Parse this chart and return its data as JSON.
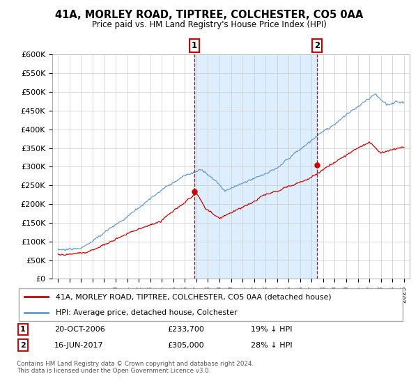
{
  "title": "41A, MORLEY ROAD, TIPTREE, COLCHESTER, CO5 0AA",
  "subtitle": "Price paid vs. HM Land Registry's House Price Index (HPI)",
  "ylabel_ticks": [
    "£0",
    "£50K",
    "£100K",
    "£150K",
    "£200K",
    "£250K",
    "£300K",
    "£350K",
    "£400K",
    "£450K",
    "£500K",
    "£550K",
    "£600K"
  ],
  "ytick_values": [
    0,
    50000,
    100000,
    150000,
    200000,
    250000,
    300000,
    350000,
    400000,
    450000,
    500000,
    550000,
    600000
  ],
  "hpi_color": "#6699cc",
  "price_color": "#cc0000",
  "shade_color": "#ddeeff",
  "transaction1_x": 2006.8,
  "transaction1_price": 233700,
  "transaction2_x": 2017.45,
  "transaction2_price": 305000,
  "legend_line1": "41A, MORLEY ROAD, TIPTREE, COLCHESTER, CO5 0AA (detached house)",
  "legend_line2": "HPI: Average price, detached house, Colchester",
  "footnote": "Contains HM Land Registry data © Crown copyright and database right 2024.\nThis data is licensed under the Open Government Licence v3.0.",
  "background_color": "#ffffff",
  "grid_color": "#cccccc",
  "xlim_left": 1994.5,
  "xlim_right": 2025.5,
  "ylim_bottom": 0,
  "ylim_top": 600000
}
